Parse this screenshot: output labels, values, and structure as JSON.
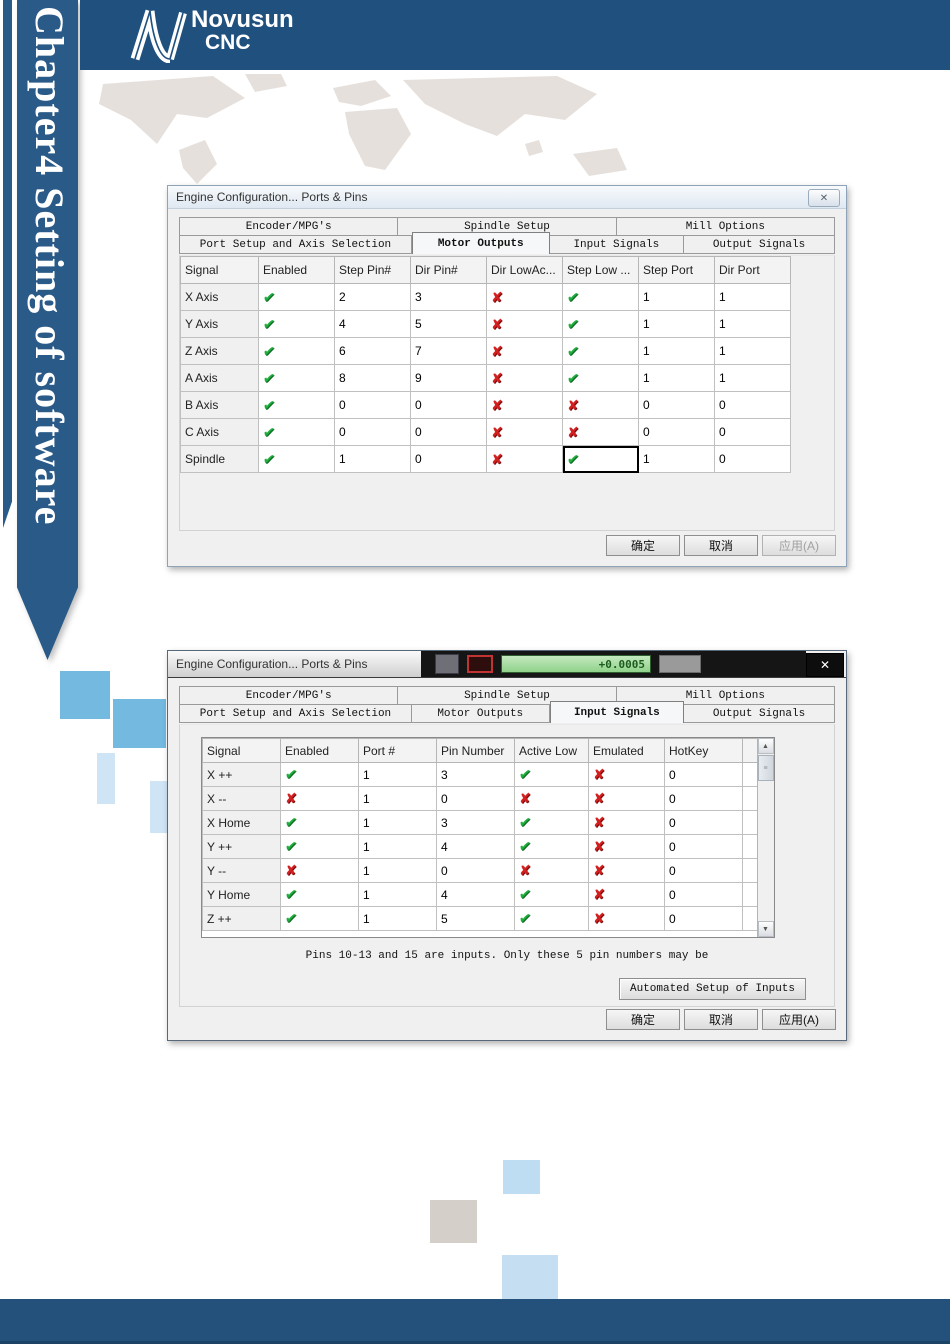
{
  "sidebar": {
    "title": "Chapter4 Setting of software"
  },
  "header": {
    "brand": "Novusun",
    "brand_sub": "CNC"
  },
  "colors": {
    "banner_blue": "#2a5a87",
    "bar_blue": "#20507e",
    "check_green": "#1fae3d",
    "cross_red": "#d41f1f"
  },
  "dialog1": {
    "title": "Engine Configuration... Ports & Pins",
    "close_glyph": "✕",
    "tabs_row1": [
      "Encoder/MPG's",
      "Spindle Setup",
      "Mill Options"
    ],
    "tabs_row2": [
      "Port Setup and Axis Selection",
      "Motor Outputs",
      "Input Signals",
      "Output Signals"
    ],
    "active_tab": "Motor Outputs",
    "table": {
      "headers": [
        "Signal",
        "Enabled",
        "Step Pin#",
        "Dir Pin#",
        "Dir LowAc...",
        "Step Low ...",
        "Step Port",
        "Dir Port"
      ],
      "rows": [
        {
          "label": "X Axis",
          "cells": [
            "✔",
            "2",
            "3",
            "✘",
            "✔",
            "1",
            "1"
          ]
        },
        {
          "label": "Y Axis",
          "cells": [
            "✔",
            "4",
            "5",
            "✘",
            "✔",
            "1",
            "1"
          ]
        },
        {
          "label": "Z Axis",
          "cells": [
            "✔",
            "6",
            "7",
            "✘",
            "✔",
            "1",
            "1"
          ]
        },
        {
          "label": "A Axis",
          "cells": [
            "✔",
            "8",
            "9",
            "✘",
            "✔",
            "1",
            "1"
          ]
        },
        {
          "label": "B Axis",
          "cells": [
            "✔",
            "0",
            "0",
            "✘",
            "✘",
            "0",
            "0"
          ]
        },
        {
          "label": "C Axis",
          "cells": [
            "✔",
            "0",
            "0",
            "✘",
            "✘",
            "0",
            "0"
          ]
        },
        {
          "label": "Spindle",
          "cells": [
            "✔",
            "1",
            "0",
            "✘",
            "✔",
            "1",
            "0"
          ]
        }
      ],
      "selected_cell": {
        "row": 6,
        "col": 4
      }
    },
    "buttons": [
      {
        "name": "ok-button",
        "label": "确定",
        "enabled": true
      },
      {
        "name": "cancel-button",
        "label": "取消",
        "enabled": true
      },
      {
        "name": "apply-button",
        "label": "应用(A)",
        "enabled": false
      }
    ]
  },
  "dialog2": {
    "title": "Engine Configuration... Ports & Pins",
    "close_glyph": "✕",
    "background_display": "+0.0005",
    "tabs_row1": [
      "Encoder/MPG's",
      "Spindle Setup",
      "Mill Options"
    ],
    "tabs_row2": [
      "Port Setup and Axis Selection",
      "Motor Outputs",
      "Input Signals",
      "Output Signals"
    ],
    "active_tab": "Input Signals",
    "table": {
      "headers": [
        "Signal",
        "Enabled",
        "Port #",
        "Pin Number",
        "Active Low",
        "Emulated",
        "HotKey"
      ],
      "rows": [
        {
          "label": "X ++",
          "cells": [
            "✔",
            "1",
            "3",
            "✔",
            "✘",
            "0"
          ]
        },
        {
          "label": "X --",
          "cells": [
            "✘",
            "1",
            "0",
            "✘",
            "✘",
            "0"
          ]
        },
        {
          "label": "X Home",
          "cells": [
            "✔",
            "1",
            "3",
            "✔",
            "✘",
            "0"
          ]
        },
        {
          "label": "Y ++",
          "cells": [
            "✔",
            "1",
            "4",
            "✔",
            "✘",
            "0"
          ]
        },
        {
          "label": "Y --",
          "cells": [
            "✘",
            "1",
            "0",
            "✘",
            "✘",
            "0"
          ]
        },
        {
          "label": "Y Home",
          "cells": [
            "✔",
            "1",
            "4",
            "✔",
            "✘",
            "0"
          ]
        },
        {
          "label": "Z ++",
          "cells": [
            "✔",
            "1",
            "5",
            "✔",
            "✘",
            "0"
          ]
        }
      ]
    },
    "note": "Pins 10-13 and 15 are inputs. Only these 5 pin numbers may be",
    "auto_button": "Automated Setup of Inputs",
    "scrollbar": {
      "up_glyph": "▲",
      "down_glyph": "▼",
      "grip_glyph": "≡"
    },
    "buttons": [
      {
        "name": "ok-button",
        "label": "确定",
        "enabled": true
      },
      {
        "name": "cancel-button",
        "label": "取消",
        "enabled": true
      },
      {
        "name": "apply-button",
        "label": "应用(A)",
        "enabled": true
      }
    ]
  }
}
